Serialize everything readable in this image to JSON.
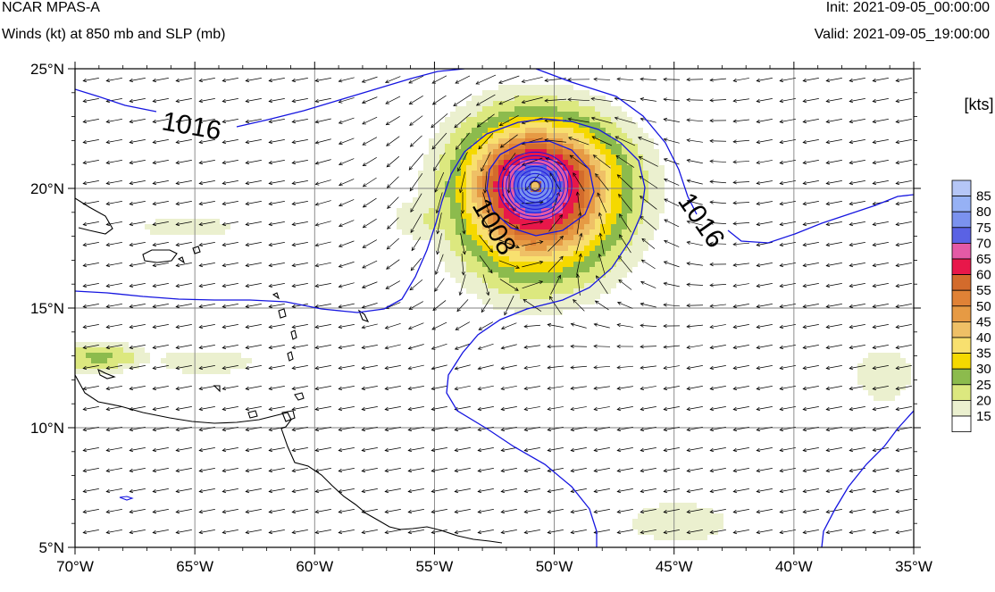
{
  "header": {
    "model": "NCAR MPAS-A",
    "field": "Winds (kt) at 850 mb and SLP (mb)",
    "init": "Init: 2021-09-05_00:00:00",
    "valid": "Valid: 2021-09-05_19:00:00"
  },
  "map": {
    "lon_range": [
      -70,
      -35
    ],
    "lat_range": [
      5,
      25
    ],
    "lon_ticks": [
      "70°W",
      "65°W",
      "60°W",
      "55°W",
      "50°W",
      "45°W",
      "40°W",
      "35°W"
    ],
    "lat_ticks": [
      "25°N",
      "20°N",
      "15°N",
      "10°N",
      "5°N"
    ],
    "grid": true,
    "storm_center": {
      "lon": -50.8,
      "lat": 20.1
    },
    "isobar_labels": [
      "1016",
      "1016",
      "1008"
    ],
    "isobar_color": "#1515e0",
    "coastline_color": "#000000"
  },
  "colorbar": {
    "title": "[kts]",
    "levels": [
      "85",
      "80",
      "75",
      "70",
      "65",
      "60",
      "55",
      "50",
      "45",
      "40",
      "35",
      "30",
      "25",
      "20",
      "15"
    ],
    "colors": [
      "#b5c6f7",
      "#96b1f5",
      "#7b92ee",
      "#5a62e4",
      "#e45aa6",
      "#e8174a",
      "#d36b2c",
      "#e08236",
      "#e69a44",
      "#efc066",
      "#f8e06f",
      "#f5d900",
      "#8cbb4d",
      "#dce87f",
      "#ebf0cf",
      "#ffffff"
    ]
  },
  "chart_data": {
    "type": "map",
    "title": "NCAR MPAS-A",
    "subtitle": "Winds (kt) at 850 mb and SLP (mb)",
    "x_range": [
      -70,
      -35
    ],
    "y_range": [
      5,
      25
    ],
    "legend": "right",
    "colorbar_units": "[kts]",
    "max_wind_level_kts": 85,
    "storm_center_lon": -50.8,
    "storm_center_lat": 20.1
  }
}
